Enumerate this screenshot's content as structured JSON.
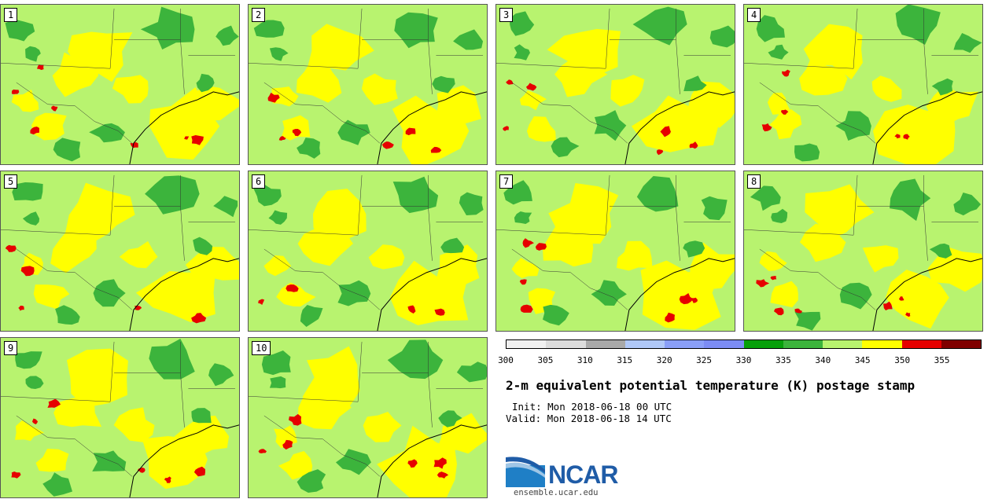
{
  "colors": {
    "land_base": "#b8f36f",
    "warm": "#ffff00",
    "cool": "#3cb43c",
    "hot": "#e60000",
    "coast": "#000000",
    "border": "#333333"
  },
  "stamps": [
    {
      "label": "1"
    },
    {
      "label": "2"
    },
    {
      "label": "3"
    },
    {
      "label": "4"
    },
    {
      "label": "5"
    },
    {
      "label": "6"
    },
    {
      "label": "7"
    },
    {
      "label": "8"
    },
    {
      "label": "9"
    },
    {
      "label": "10"
    }
  ],
  "colorbar": {
    "colors": [
      "#f0f0f0",
      "#dcdcdc",
      "#a9a9a9",
      "#b0c8f8",
      "#8a9ff8",
      "#7c8cf4",
      "#06a00a",
      "#3cb43c",
      "#b8f36f",
      "#ffff00",
      "#e60000",
      "#800000"
    ],
    "ticks": [
      "300",
      "305",
      "310",
      "315",
      "320",
      "325",
      "330",
      "335",
      "340",
      "345",
      "350",
      "355"
    ]
  },
  "title": "2-m equivalent potential temperature (K) postage stamp",
  "init": "Init: Mon 2018-06-18 00 UTC",
  "valid": "Valid: Mon 2018-06-18 14 UTC",
  "logo": {
    "text": "NCAR",
    "url": "ensemble.ucar.edu"
  }
}
